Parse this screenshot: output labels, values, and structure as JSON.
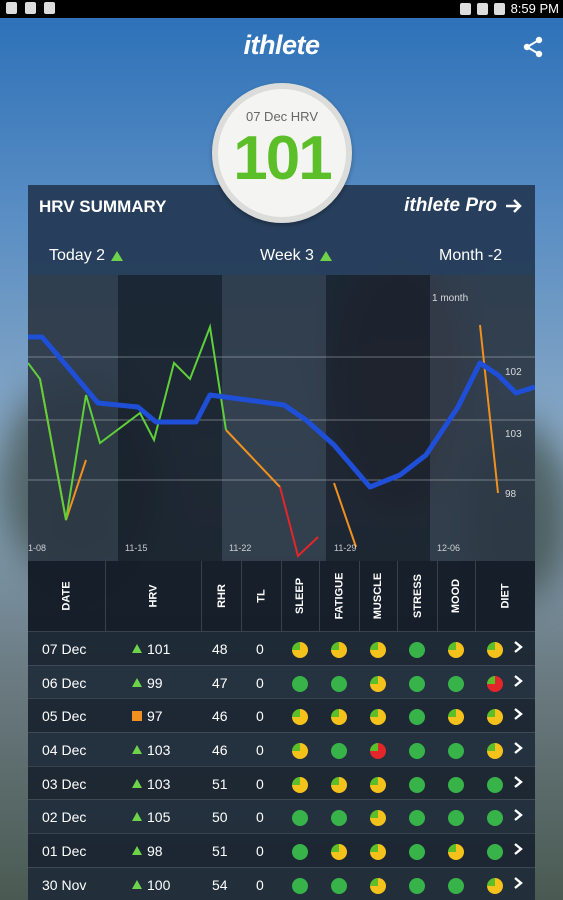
{
  "status_bar": {
    "time": "8:59 PM"
  },
  "app": {
    "title": "ithlete"
  },
  "badge": {
    "label": "07 Dec HRV",
    "value": "101"
  },
  "summary": {
    "title": "HRV SUMMARY",
    "pro_label": "ithlete Pro",
    "periods": [
      {
        "label": "Today 2",
        "trend": "up"
      },
      {
        "label": "Week 3",
        "trend": "up"
      },
      {
        "label": "Month -2",
        "trend": "none"
      }
    ]
  },
  "chart_data": {
    "type": "line",
    "x_tick_labels": [
      "1-08",
      "11-15",
      "11-22",
      "11-29",
      "12-06"
    ],
    "annotation": "1 month",
    "y_tick_labels": [
      "102",
      "103",
      "98"
    ],
    "series_colors": {
      "daily": "#5fcf3a",
      "average": "#1f4fd6"
    }
  },
  "table": {
    "headers": [
      "DATE",
      "HRV",
      "RHR",
      "TL",
      "SLEEP",
      "FATIGUE",
      "MUSCLE",
      "STRESS",
      "MOOD",
      "DIET"
    ],
    "rows": [
      {
        "date": "07 Dec",
        "indicator": "up",
        "hrv": "101",
        "rhr": "48",
        "tl": "0",
        "dots": [
          "#f5c21b",
          "#f5c21b",
          "#f5c21b",
          "#37b34a",
          "#f5c21b",
          "#f5c21b"
        ]
      },
      {
        "date": "06 Dec",
        "indicator": "up",
        "hrv": "99",
        "rhr": "47",
        "tl": "0",
        "dots": [
          "#37b34a",
          "#37b34a",
          "#f5c21b",
          "#37b34a",
          "#37b34a",
          "#e3262a"
        ]
      },
      {
        "date": "05 Dec",
        "indicator": "square",
        "hrv": "97",
        "rhr": "46",
        "tl": "0",
        "dots": [
          "#f5c21b",
          "#f5c21b",
          "#f5c21b",
          "#37b34a",
          "#f5c21b",
          "#f5c21b"
        ]
      },
      {
        "date": "04 Dec",
        "indicator": "up",
        "hrv": "103",
        "rhr": "46",
        "tl": "0",
        "dots": [
          "#f5c21b",
          "#37b34a",
          "#e3262a",
          "#37b34a",
          "#37b34a",
          "#f5c21b"
        ]
      },
      {
        "date": "03 Dec",
        "indicator": "up",
        "hrv": "103",
        "rhr": "51",
        "tl": "0",
        "dots": [
          "#f5c21b",
          "#f5c21b",
          "#f5c21b",
          "#37b34a",
          "#37b34a",
          "#37b34a"
        ]
      },
      {
        "date": "02 Dec",
        "indicator": "up",
        "hrv": "105",
        "rhr": "50",
        "tl": "0",
        "dots": [
          "#37b34a",
          "#37b34a",
          "#f5c21b",
          "#37b34a",
          "#37b34a",
          "#37b34a"
        ]
      },
      {
        "date": "01 Dec",
        "indicator": "up",
        "hrv": "98",
        "rhr": "51",
        "tl": "0",
        "dots": [
          "#37b34a",
          "#f5c21b",
          "#f5c21b",
          "#37b34a",
          "#f5c21b",
          "#37b34a"
        ]
      },
      {
        "date": "30 Nov",
        "indicator": "up",
        "hrv": "100",
        "rhr": "54",
        "tl": "0",
        "dots": [
          "#37b34a",
          "#37b34a",
          "#f5c21b",
          "#37b34a",
          "#37b34a",
          "#f5c21b"
        ]
      }
    ]
  }
}
